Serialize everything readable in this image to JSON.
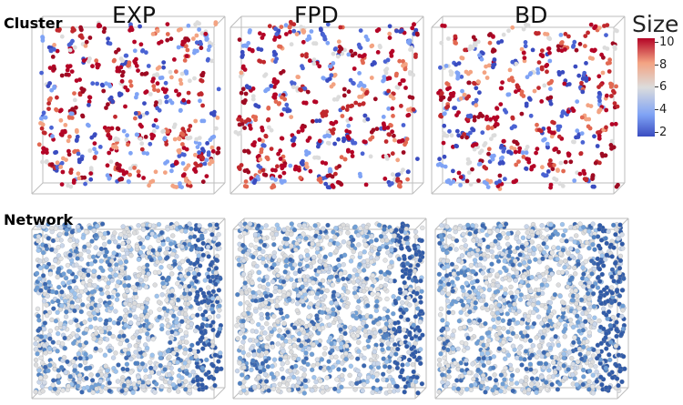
{
  "columns": [
    "EXP",
    "FPD",
    "BD"
  ],
  "rows": {
    "top": "Cluster",
    "bottom": "Network"
  },
  "colorbar": {
    "title": "Size",
    "ticks": [
      "10",
      "8",
      "6",
      "4",
      "2"
    ],
    "colors": [
      "#3a4cc0",
      "#7fa3f5",
      "#dcdcdc",
      "#f3a382",
      "#b40426"
    ]
  }
}
